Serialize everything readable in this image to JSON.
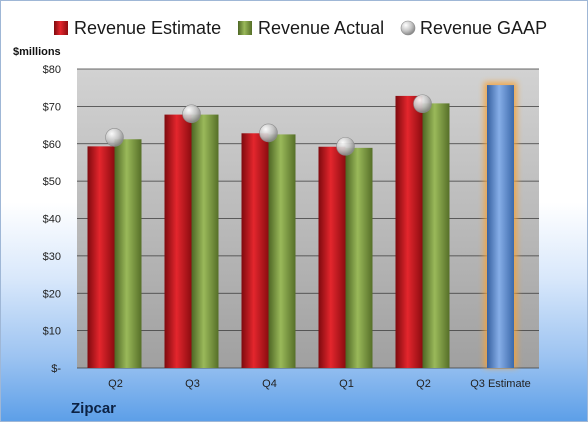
{
  "chart_data": {
    "type": "bar",
    "brand": "Zipcar",
    "ylabel": "$millions",
    "categories": [
      "Q2",
      "Q3",
      "Q4",
      "Q1",
      "Q2",
      "Q3 Estimate"
    ],
    "yticks": [
      "$-",
      "$10",
      "$20",
      "$30",
      "$40",
      "$50",
      "$60",
      "$70",
      "$80"
    ],
    "ylim": [
      0,
      80
    ],
    "grid": true,
    "legend_position": "top",
    "series": [
      {
        "name": "Revenue Estimate",
        "kind": "bar",
        "color": "#c8161d",
        "values": [
          59.3,
          67.8,
          62.8,
          59.2,
          72.8,
          null
        ]
      },
      {
        "name": "Revenue Actual",
        "kind": "bar",
        "color": "#7a9a3c",
        "values": [
          61.2,
          67.8,
          62.5,
          58.9,
          70.8,
          null
        ]
      },
      {
        "name": "Revenue GAAP",
        "kind": "marker",
        "color": "#b9b9b9",
        "values": [
          61.7,
          68.0,
          62.9,
          59.3,
          70.7,
          null
        ]
      },
      {
        "name": "",
        "kind": "bar",
        "color": "#5b8fd6",
        "highlight": "#f5a33a",
        "values": [
          null,
          null,
          null,
          null,
          null,
          75.7
        ]
      }
    ]
  }
}
